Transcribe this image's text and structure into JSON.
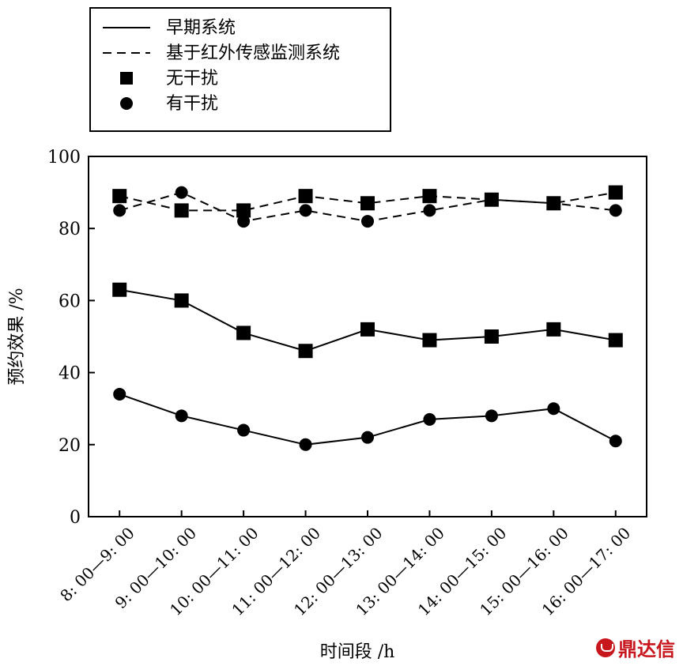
{
  "chart_data": {
    "type": "line",
    "categories": [
      "8: 00—9: 00",
      "9: 00—10: 00",
      "10: 00—11: 00",
      "11: 00—12: 00",
      "12: 00—13: 00",
      "13: 00—14: 00",
      "14: 00—15: 00",
      "15: 00—16: 00",
      "16: 00—17: 00"
    ],
    "xlabel": "时间段 /h",
    "ylabel": "预约效果 /%",
    "ylim": [
      0,
      100
    ],
    "yticks": [
      0,
      20,
      40,
      60,
      80,
      100
    ],
    "grid": false,
    "legend_position": "top-left",
    "legend": {
      "line_entries": [
        {
          "label": "早期系统",
          "style": "solid"
        },
        {
          "label": "基于红外传感监测系统",
          "style": "dashed"
        }
      ],
      "marker_entries": [
        {
          "label": "无干扰",
          "marker": "square"
        },
        {
          "label": "有干扰",
          "marker": "circle"
        }
      ]
    },
    "series": [
      {
        "system": "基于红外传感监测系统",
        "condition": "无干扰",
        "style": "dashed",
        "marker": "square",
        "values": [
          89,
          85,
          85,
          89,
          87,
          89,
          88,
          87,
          90
        ]
      },
      {
        "system": "基于红外传感监测系统",
        "condition": "有干扰",
        "style": "dashed",
        "marker": "circle",
        "values": [
          85,
          90,
          82,
          85,
          82,
          85,
          88,
          87,
          85
        ]
      },
      {
        "system": "早期系统",
        "condition": "无干扰",
        "style": "solid",
        "marker": "square",
        "values": [
          63,
          60,
          51,
          46,
          52,
          49,
          50,
          52,
          49
        ]
      },
      {
        "system": "早期系统",
        "condition": "有干扰",
        "style": "solid",
        "marker": "circle",
        "values": [
          34,
          28,
          24,
          20,
          22,
          27,
          28,
          30,
          21
        ]
      }
    ]
  },
  "watermark": {
    "text": "鼎达信",
    "color": "#c8161d"
  }
}
